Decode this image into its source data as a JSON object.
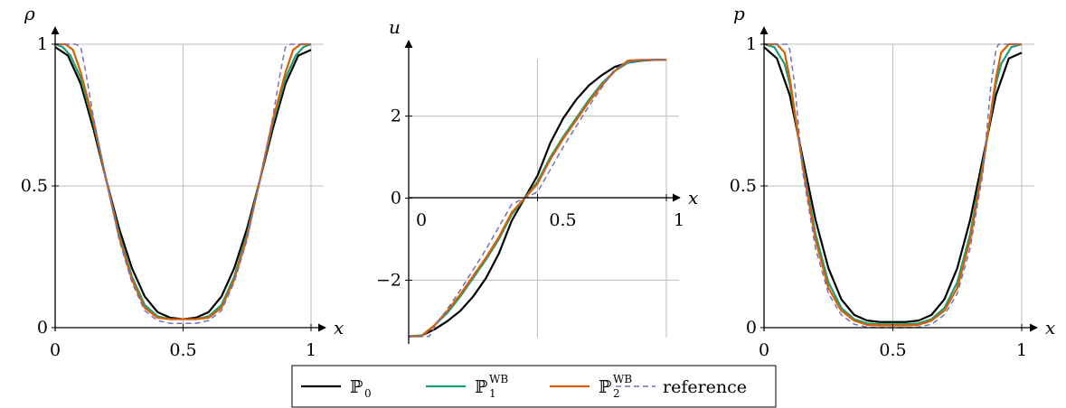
{
  "colors": {
    "P0": "#000000",
    "P1WB": "#1b9e77",
    "P2WB": "#d95f02",
    "reference": "#7570b3",
    "grid": "#bdbdbd"
  },
  "legend": {
    "items": [
      {
        "key": "P0",
        "label": "ℙ",
        "sub": "0",
        "sup": ""
      },
      {
        "key": "P1WB",
        "label": "ℙ",
        "sub": "1",
        "sup": "WB"
      },
      {
        "key": "P2WB",
        "label": "ℙ",
        "sub": "2",
        "sup": "WB"
      },
      {
        "key": "reference",
        "label": "reference",
        "sub": "",
        "sup": ""
      }
    ]
  },
  "chart_data": [
    {
      "type": "line",
      "ylabel": "ρ",
      "xlabel": "x",
      "xlim": [
        0,
        1
      ],
      "ylim": [
        0,
        1
      ],
      "xticks": [
        0,
        0.5,
        1
      ],
      "xtick_labels": [
        "0",
        "0.5",
        "1"
      ],
      "yticks": [
        0,
        0.5,
        1
      ],
      "ytick_labels": [
        "0",
        "0.5",
        "1"
      ],
      "grid": true,
      "series": [
        {
          "name": "ℙ0",
          "key": "P0",
          "dash": false,
          "x": [
            0,
            0.05,
            0.1,
            0.15,
            0.2,
            0.25,
            0.3,
            0.35,
            0.4,
            0.45,
            0.5,
            0.55,
            0.6,
            0.65,
            0.7,
            0.75,
            0.8,
            0.85,
            0.9,
            0.95,
            1
          ],
          "y": [
            0.99,
            0.96,
            0.86,
            0.7,
            0.52,
            0.35,
            0.21,
            0.11,
            0.055,
            0.035,
            0.03,
            0.035,
            0.055,
            0.11,
            0.21,
            0.35,
            0.52,
            0.7,
            0.86,
            0.96,
            0.98
          ]
        },
        {
          "name": "ℙ1WB",
          "key": "P1WB",
          "dash": false,
          "x": [
            0,
            0.03,
            0.06,
            0.1,
            0.15,
            0.2,
            0.25,
            0.3,
            0.35,
            0.4,
            0.45,
            0.5,
            0.55,
            0.6,
            0.65,
            0.7,
            0.75,
            0.8,
            0.85,
            0.9,
            0.94,
            0.97,
            1
          ],
          "y": [
            1.0,
            0.99,
            0.96,
            0.88,
            0.72,
            0.52,
            0.33,
            0.18,
            0.08,
            0.04,
            0.03,
            0.03,
            0.03,
            0.04,
            0.08,
            0.18,
            0.33,
            0.52,
            0.72,
            0.88,
            0.96,
            0.99,
            1.0
          ]
        },
        {
          "name": "ℙ2WB",
          "key": "P2WB",
          "dash": false,
          "x": [
            0,
            0.04,
            0.07,
            0.1,
            0.15,
            0.2,
            0.25,
            0.3,
            0.35,
            0.4,
            0.45,
            0.5,
            0.55,
            0.6,
            0.65,
            0.7,
            0.75,
            0.8,
            0.85,
            0.9,
            0.93,
            0.96,
            1
          ],
          "y": [
            1.0,
            1.0,
            0.98,
            0.9,
            0.73,
            0.52,
            0.32,
            0.17,
            0.07,
            0.035,
            0.03,
            0.03,
            0.03,
            0.035,
            0.07,
            0.17,
            0.32,
            0.52,
            0.73,
            0.9,
            0.98,
            1.0,
            1.0
          ]
        },
        {
          "name": "reference",
          "key": "reference",
          "dash": true,
          "x": [
            0,
            0.08,
            0.1,
            0.12,
            0.15,
            0.2,
            0.25,
            0.3,
            0.35,
            0.4,
            0.45,
            0.5,
            0.55,
            0.6,
            0.65,
            0.7,
            0.75,
            0.8,
            0.85,
            0.88,
            0.9,
            0.92,
            1
          ],
          "y": [
            1.0,
            1.0,
            0.99,
            0.9,
            0.74,
            0.52,
            0.31,
            0.16,
            0.06,
            0.025,
            0.015,
            0.015,
            0.015,
            0.025,
            0.06,
            0.16,
            0.31,
            0.52,
            0.74,
            0.9,
            0.99,
            1.0,
            1.0
          ]
        }
      ]
    },
    {
      "type": "line",
      "ylabel": "u",
      "xlabel": "x",
      "xlim": [
        0,
        1
      ],
      "ylim": [
        -3.4,
        3.4
      ],
      "xticks": [
        0,
        0.5,
        1
      ],
      "xtick_labels": [
        "0",
        "0.5",
        "1"
      ],
      "yticks": [
        -2,
        0,
        2
      ],
      "ytick_labels": [
        "−2",
        "0",
        "2"
      ],
      "grid": true,
      "series": [
        {
          "name": "ℙ0",
          "key": "P0",
          "dash": false,
          "x": [
            0,
            0.05,
            0.1,
            0.15,
            0.2,
            0.25,
            0.3,
            0.35,
            0.4,
            0.45,
            0.5,
            0.55,
            0.6,
            0.65,
            0.7,
            0.75,
            0.8,
            0.85,
            0.9,
            0.95,
            1
          ],
          "y": [
            -3.37,
            -3.35,
            -3.2,
            -3.0,
            -2.75,
            -2.4,
            -1.95,
            -1.35,
            -0.55,
            0.0,
            0.55,
            1.35,
            1.95,
            2.4,
            2.75,
            3.0,
            3.2,
            3.3,
            3.35,
            3.37,
            3.37
          ]
        },
        {
          "name": "ℙ1WB",
          "key": "P1WB",
          "dash": false,
          "x": [
            0,
            0.05,
            0.1,
            0.15,
            0.2,
            0.25,
            0.3,
            0.35,
            0.4,
            0.45,
            0.5,
            0.55,
            0.6,
            0.65,
            0.7,
            0.75,
            0.8,
            0.85,
            0.9,
            0.95,
            1
          ],
          "y": [
            -3.37,
            -3.35,
            -3.1,
            -2.8,
            -2.4,
            -1.95,
            -1.5,
            -1.0,
            -0.4,
            0.0,
            0.4,
            1.0,
            1.5,
            1.95,
            2.4,
            2.8,
            3.1,
            3.3,
            3.36,
            3.37,
            3.37
          ]
        },
        {
          "name": "ℙ2WB",
          "key": "P2WB",
          "dash": false,
          "x": [
            0,
            0.05,
            0.1,
            0.15,
            0.2,
            0.25,
            0.3,
            0.35,
            0.4,
            0.45,
            0.5,
            0.55,
            0.6,
            0.65,
            0.7,
            0.75,
            0.8,
            0.85,
            0.9,
            0.95,
            1
          ],
          "y": [
            -3.37,
            -3.37,
            -3.1,
            -2.75,
            -2.35,
            -1.9,
            -1.45,
            -0.95,
            -0.35,
            0.0,
            0.35,
            0.95,
            1.45,
            1.9,
            2.35,
            2.75,
            3.1,
            3.35,
            3.37,
            3.37,
            3.37
          ]
        },
        {
          "name": "reference",
          "key": "reference",
          "dash": true,
          "x": [
            0,
            0.08,
            0.1,
            0.15,
            0.2,
            0.25,
            0.3,
            0.35,
            0.4,
            0.45,
            0.5,
            0.55,
            0.6,
            0.65,
            0.7,
            0.75,
            0.8,
            0.85,
            0.9,
            0.92,
            1
          ],
          "y": [
            -3.37,
            -3.37,
            -3.15,
            -2.7,
            -2.25,
            -1.75,
            -1.25,
            -0.7,
            -0.15,
            0.0,
            0.15,
            0.7,
            1.25,
            1.75,
            2.25,
            2.7,
            3.15,
            3.3,
            3.37,
            3.37,
            3.37
          ]
        }
      ]
    },
    {
      "type": "line",
      "ylabel": "p",
      "xlabel": "x",
      "xlim": [
        0,
        1
      ],
      "ylim": [
        0,
        1
      ],
      "xticks": [
        0,
        0.5,
        1
      ],
      "xtick_labels": [
        "0",
        "0.5",
        "1"
      ],
      "yticks": [
        0,
        0.5,
        1
      ],
      "ytick_labels": [
        "0",
        "0.5",
        "1"
      ],
      "grid": true,
      "series": [
        {
          "name": "ℙ0",
          "key": "P0",
          "dash": false,
          "x": [
            0,
            0.05,
            0.1,
            0.15,
            0.2,
            0.25,
            0.3,
            0.35,
            0.4,
            0.45,
            0.5,
            0.55,
            0.6,
            0.65,
            0.7,
            0.75,
            0.8,
            0.85,
            0.9,
            0.95,
            1
          ],
          "y": [
            0.99,
            0.95,
            0.82,
            0.6,
            0.38,
            0.21,
            0.1,
            0.045,
            0.025,
            0.02,
            0.02,
            0.02,
            0.025,
            0.045,
            0.1,
            0.21,
            0.38,
            0.6,
            0.82,
            0.95,
            0.97
          ]
        },
        {
          "name": "ℙ1WB",
          "key": "P1WB",
          "dash": false,
          "x": [
            0,
            0.04,
            0.08,
            0.1,
            0.15,
            0.2,
            0.25,
            0.3,
            0.35,
            0.4,
            0.45,
            0.5,
            0.55,
            0.6,
            0.65,
            0.7,
            0.75,
            0.8,
            0.85,
            0.9,
            0.92,
            0.96,
            1
          ],
          "y": [
            1.0,
            0.99,
            0.93,
            0.86,
            0.58,
            0.33,
            0.16,
            0.07,
            0.03,
            0.015,
            0.012,
            0.012,
            0.012,
            0.015,
            0.03,
            0.07,
            0.16,
            0.33,
            0.58,
            0.86,
            0.93,
            0.99,
            1.0
          ]
        },
        {
          "name": "ℙ2WB",
          "key": "P2WB",
          "dash": false,
          "x": [
            0,
            0.05,
            0.08,
            0.1,
            0.15,
            0.2,
            0.25,
            0.3,
            0.35,
            0.4,
            0.45,
            0.5,
            0.55,
            0.6,
            0.65,
            0.7,
            0.75,
            0.8,
            0.85,
            0.9,
            0.92,
            0.95,
            1
          ],
          "y": [
            1.0,
            1.0,
            0.97,
            0.88,
            0.57,
            0.31,
            0.14,
            0.06,
            0.025,
            0.01,
            0.008,
            0.008,
            0.008,
            0.01,
            0.025,
            0.06,
            0.14,
            0.31,
            0.57,
            0.88,
            0.97,
            1.0,
            1.0
          ]
        },
        {
          "name": "reference",
          "key": "reference",
          "dash": true,
          "x": [
            0,
            0.09,
            0.1,
            0.12,
            0.15,
            0.2,
            0.25,
            0.3,
            0.35,
            0.4,
            0.45,
            0.5,
            0.55,
            0.6,
            0.65,
            0.7,
            0.75,
            0.8,
            0.85,
            0.88,
            0.9,
            0.91,
            1
          ],
          "y": [
            1.0,
            1.0,
            0.98,
            0.85,
            0.55,
            0.28,
            0.12,
            0.045,
            0.012,
            0.002,
            0.0,
            0.0,
            0.0,
            0.002,
            0.012,
            0.045,
            0.12,
            0.28,
            0.55,
            0.85,
            0.98,
            1.0,
            1.0
          ]
        }
      ]
    }
  ]
}
